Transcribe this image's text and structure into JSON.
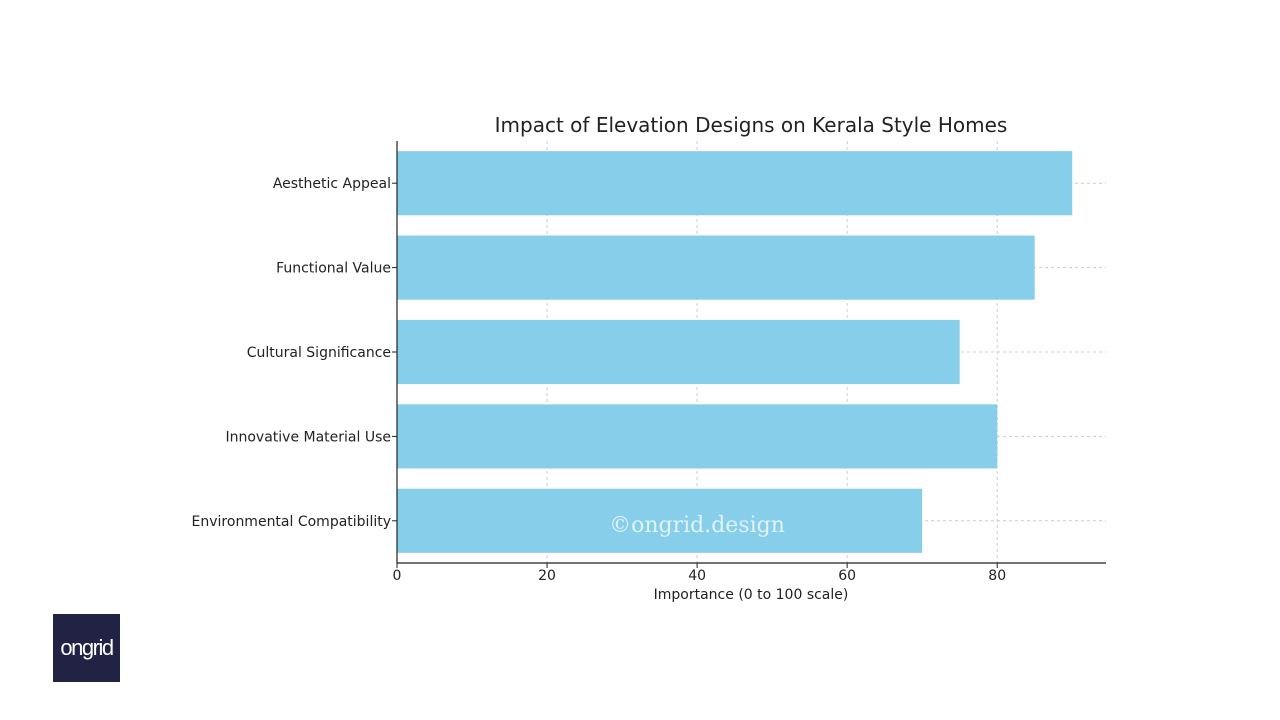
{
  "chart_data": {
    "type": "bar",
    "orientation": "horizontal",
    "title": "Impact of Elevation Designs on Kerala Style Homes",
    "xlabel": "Importance (0 to 100 scale)",
    "ylabel": "",
    "categories": [
      "Aesthetic Appeal",
      "Functional Value",
      "Cultural Significance",
      "Innovative Material Use",
      "Environmental Compatibility"
    ],
    "values": [
      90,
      85,
      75,
      80,
      70
    ],
    "xlim": [
      0,
      94.5
    ],
    "xticks": [
      0,
      20,
      40,
      60,
      80
    ],
    "grid": true,
    "bar_color": "#87CEEB"
  },
  "watermark": "©ongrid.design",
  "logo": {
    "text": "ongrid"
  }
}
